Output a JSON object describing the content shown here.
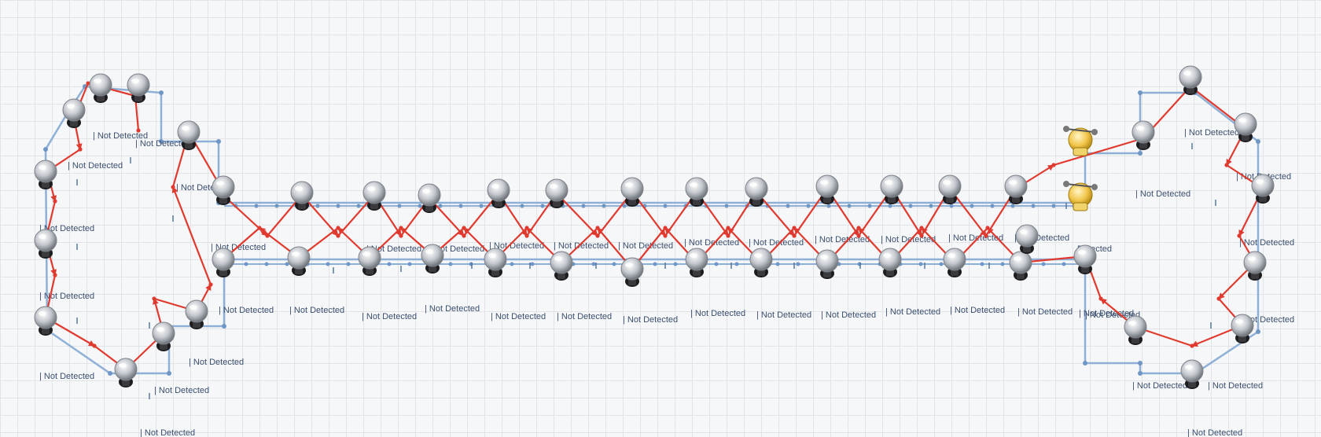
{
  "diagram": {
    "status_label": "| Not Detected",
    "partial_label": "Detected",
    "colors": {
      "grid": "#e2e4e8",
      "wall": "#8fb0d6",
      "wall_node": "#6f97c6",
      "path": "#e03a2f",
      "sensor_head": "#c9cdd3",
      "sensor_body": "#1d1d1f",
      "robot": "#f2c64a",
      "label": "#3b4f6e"
    },
    "icons": {
      "sensor": "security-camera-dome-icon",
      "robot": "robot-agent-icon",
      "path_arrow": "arrow-icon"
    },
    "sensor_count": 44,
    "detection_states": [
      "Not Detected",
      "Detected"
    ]
  }
}
